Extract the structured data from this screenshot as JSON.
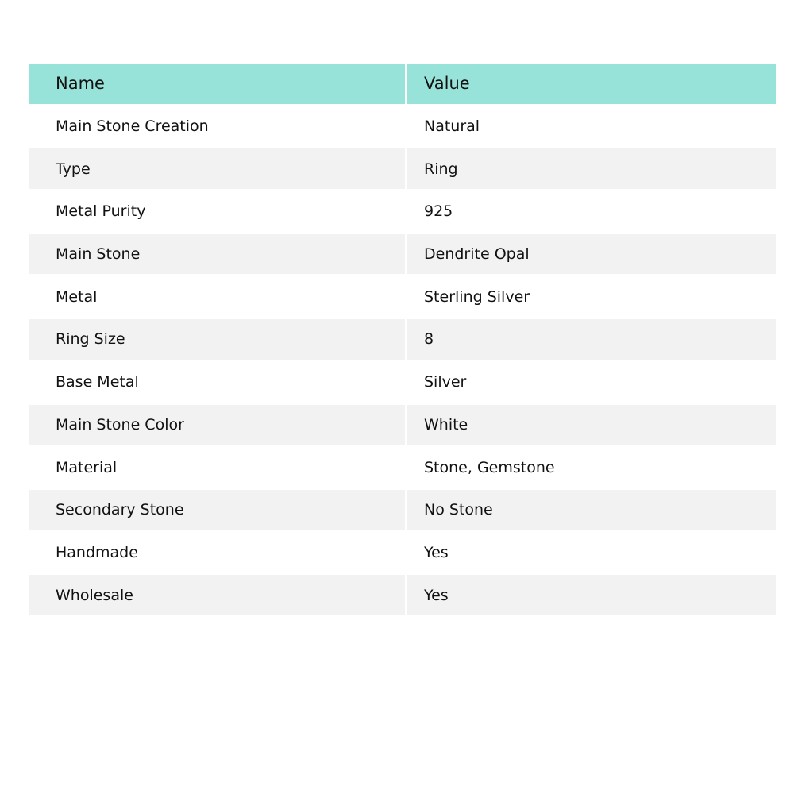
{
  "table": {
    "headers": [
      "Name",
      "Value"
    ],
    "rows": [
      [
        "Main Stone Creation",
        "Natural"
      ],
      [
        "Type",
        "Ring"
      ],
      [
        "Metal Purity",
        "925"
      ],
      [
        "Main Stone",
        "Dendrite Opal"
      ],
      [
        "Metal",
        "Sterling Silver"
      ],
      [
        "Ring Size",
        "8"
      ],
      [
        "Base Metal",
        "Silver"
      ],
      [
        "Main Stone Color",
        "White"
      ],
      [
        "Material",
        "Stone, Gemstone"
      ],
      [
        "Secondary Stone",
        "No Stone"
      ],
      [
        "Handmade",
        "Yes"
      ],
      [
        "Wholesale",
        "Yes"
      ]
    ]
  },
  "colors": {
    "header": "#97e3d9",
    "alt_row": "#f2f2f2"
  }
}
